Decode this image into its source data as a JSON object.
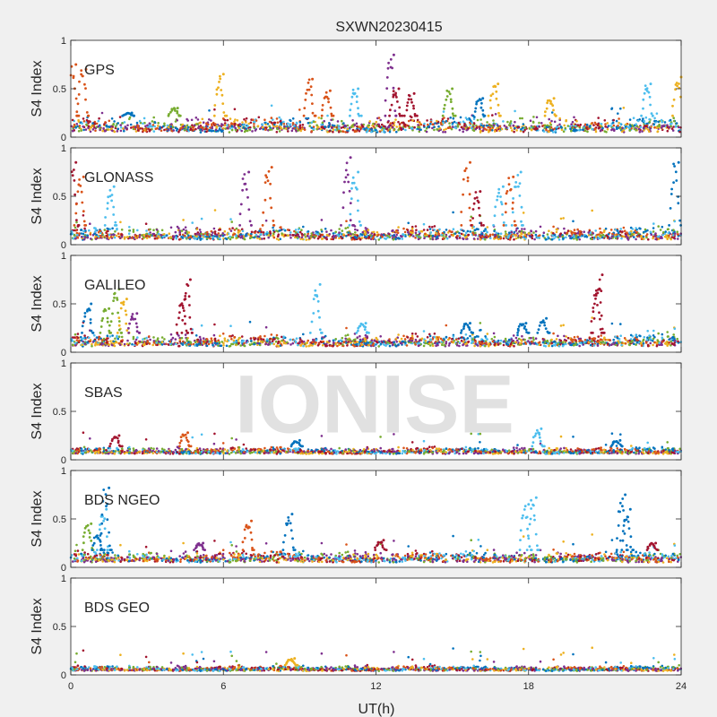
{
  "figure": {
    "title": "SXWN20230415",
    "xlabel": "UT(h)",
    "watermark": "IONISE"
  },
  "palette": [
    "#0072BD",
    "#D95319",
    "#EDB120",
    "#7E2F8E",
    "#77AC30",
    "#4DBEEE",
    "#A2142F"
  ],
  "chart_data": [
    {
      "type": "scatter",
      "panel": "GPS",
      "ylabel": "S4 Index",
      "xlim": [
        0,
        24
      ],
      "ylim": [
        0,
        1
      ],
      "xticks": [
        "0",
        "6",
        "12",
        "18",
        "24"
      ],
      "yticks": [
        "0",
        "0.5",
        "1"
      ],
      "baseline": [
        0.05,
        0.22
      ],
      "spikes": [
        {
          "x": 0.2,
          "y": 0.75,
          "c": 1
        },
        {
          "x": 0.6,
          "y": 0.7,
          "c": 1
        },
        {
          "x": 2.4,
          "y": 0.25,
          "c": 0
        },
        {
          "x": 4.2,
          "y": 0.3,
          "c": 4
        },
        {
          "x": 6.0,
          "y": 0.65,
          "c": 2
        },
        {
          "x": 9.5,
          "y": 0.6,
          "c": 1
        },
        {
          "x": 10.2,
          "y": 0.48,
          "c": 1
        },
        {
          "x": 11.3,
          "y": 0.5,
          "c": 5
        },
        {
          "x": 12.7,
          "y": 0.85,
          "c": 3
        },
        {
          "x": 12.9,
          "y": 0.5,
          "c": 6
        },
        {
          "x": 13.5,
          "y": 0.45,
          "c": 6
        },
        {
          "x": 15.0,
          "y": 0.5,
          "c": 4
        },
        {
          "x": 16.2,
          "y": 0.4,
          "c": 0
        },
        {
          "x": 16.8,
          "y": 0.55,
          "c": 2
        },
        {
          "x": 19.0,
          "y": 0.4,
          "c": 2
        },
        {
          "x": 22.8,
          "y": 0.55,
          "c": 5
        },
        {
          "x": 24.0,
          "y": 0.62,
          "c": 2
        }
      ]
    },
    {
      "type": "scatter",
      "panel": "GLONASS",
      "ylabel": "S4 Index",
      "xlim": [
        0,
        24
      ],
      "ylim": [
        0,
        1
      ],
      "xticks": [
        "0",
        "6",
        "12",
        "18",
        "24"
      ],
      "yticks": [
        "0",
        "0.5",
        "1"
      ],
      "baseline": [
        0.05,
        0.2
      ],
      "spikes": [
        {
          "x": 0.2,
          "y": 0.85,
          "c": 6
        },
        {
          "x": 0.5,
          "y": 0.7,
          "c": 1
        },
        {
          "x": 1.7,
          "y": 0.6,
          "c": 5
        },
        {
          "x": 7.0,
          "y": 0.75,
          "c": 3
        },
        {
          "x": 7.9,
          "y": 0.8,
          "c": 1
        },
        {
          "x": 11.0,
          "y": 0.9,
          "c": 3
        },
        {
          "x": 11.3,
          "y": 0.75,
          "c": 5
        },
        {
          "x": 15.7,
          "y": 0.85,
          "c": 1
        },
        {
          "x": 16.1,
          "y": 0.55,
          "c": 6
        },
        {
          "x": 17.0,
          "y": 0.6,
          "c": 5
        },
        {
          "x": 17.7,
          "y": 0.75,
          "c": 5
        },
        {
          "x": 17.4,
          "y": 0.7,
          "c": 1
        },
        {
          "x": 23.9,
          "y": 0.85,
          "c": 0
        }
      ]
    },
    {
      "type": "scatter",
      "panel": "GALILEO",
      "ylabel": "S4 Index",
      "xlim": [
        0,
        24
      ],
      "ylim": [
        0,
        1
      ],
      "xticks": [
        "0",
        "6",
        "12",
        "18",
        "24"
      ],
      "yticks": [
        "0",
        "0.5",
        "1"
      ],
      "baseline": [
        0.06,
        0.2
      ],
      "spikes": [
        {
          "x": 0.8,
          "y": 0.5,
          "c": 0
        },
        {
          "x": 1.5,
          "y": 0.45,
          "c": 4
        },
        {
          "x": 1.9,
          "y": 0.65,
          "c": 4
        },
        {
          "x": 2.2,
          "y": 0.55,
          "c": 2
        },
        {
          "x": 2.6,
          "y": 0.4,
          "c": 3
        },
        {
          "x": 4.5,
          "y": 0.55,
          "c": 6
        },
        {
          "x": 4.7,
          "y": 0.75,
          "c": 6
        },
        {
          "x": 9.8,
          "y": 0.7,
          "c": 5
        },
        {
          "x": 11.6,
          "y": 0.3,
          "c": 5
        },
        {
          "x": 15.7,
          "y": 0.3,
          "c": 0
        },
        {
          "x": 17.9,
          "y": 0.3,
          "c": 0
        },
        {
          "x": 18.7,
          "y": 0.35,
          "c": 0
        },
        {
          "x": 20.9,
          "y": 0.8,
          "c": 6
        },
        {
          "x": 20.8,
          "y": 0.65,
          "c": 6
        }
      ]
    },
    {
      "type": "scatter",
      "panel": "SBAS",
      "ylabel": "S4 Index",
      "xlim": [
        0,
        24
      ],
      "ylim": [
        0,
        1
      ],
      "xticks": [
        "0",
        "6",
        "12",
        "18",
        "24"
      ],
      "yticks": [
        "0",
        "0.5",
        "1"
      ],
      "baseline": [
        0.06,
        0.14
      ],
      "spikes": [
        {
          "x": 1.9,
          "y": 0.25,
          "c": 6
        },
        {
          "x": 4.6,
          "y": 0.28,
          "c": 1
        },
        {
          "x": 9.0,
          "y": 0.2,
          "c": 0
        },
        {
          "x": 18.5,
          "y": 0.32,
          "c": 5
        },
        {
          "x": 21.6,
          "y": 0.2,
          "c": 0
        }
      ]
    },
    {
      "type": "scatter",
      "panel": "BDS NGEO",
      "ylabel": "S4 Index",
      "xlim": [
        0,
        24
      ],
      "ylim": [
        0,
        1
      ],
      "xticks": [
        "0",
        "6",
        "12",
        "18",
        "24"
      ],
      "yticks": [
        "0",
        "0.5",
        "1"
      ],
      "baseline": [
        0.05,
        0.18
      ],
      "spikes": [
        {
          "x": 0.8,
          "y": 0.45,
          "c": 4
        },
        {
          "x": 1.4,
          "y": 0.6,
          "c": 5
        },
        {
          "x": 1.5,
          "y": 0.82,
          "c": 0
        },
        {
          "x": 1.2,
          "y": 0.35,
          "c": 0
        },
        {
          "x": 5.2,
          "y": 0.25,
          "c": 3
        },
        {
          "x": 7.1,
          "y": 0.48,
          "c": 1
        },
        {
          "x": 8.7,
          "y": 0.55,
          "c": 0
        },
        {
          "x": 12.3,
          "y": 0.28,
          "c": 6
        },
        {
          "x": 18.0,
          "y": 0.65,
          "c": 5
        },
        {
          "x": 18.3,
          "y": 0.72,
          "c": 5
        },
        {
          "x": 21.8,
          "y": 0.75,
          "c": 0
        },
        {
          "x": 22.0,
          "y": 0.6,
          "c": 0
        },
        {
          "x": 23.0,
          "y": 0.25,
          "c": 6
        }
      ]
    },
    {
      "type": "scatter",
      "panel": "BDS GEO",
      "ylabel": "S4 Index",
      "xlim": [
        0,
        24
      ],
      "ylim": [
        0,
        1
      ],
      "xticks": [
        "0",
        "6",
        "12",
        "18",
        "24"
      ],
      "yticks": [
        "0",
        "0.5",
        "1"
      ],
      "baseline": [
        0.04,
        0.1
      ],
      "spikes": [
        {
          "x": 8.8,
          "y": 0.17,
          "c": 2
        }
      ]
    }
  ]
}
